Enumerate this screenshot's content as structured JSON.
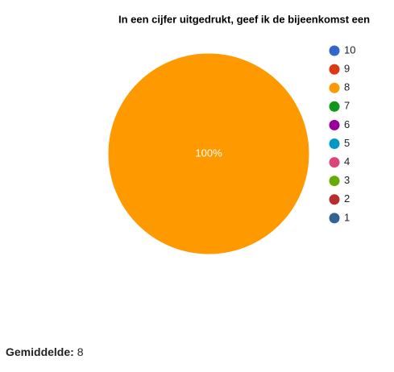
{
  "chart_data": {
    "type": "pie",
    "title": "In een cijfer uitgedrukt, geef ik de bijeenkomst een",
    "categories": [
      "10",
      "9",
      "8",
      "7",
      "6",
      "5",
      "4",
      "3",
      "2",
      "1"
    ],
    "values": [
      0,
      0,
      100,
      0,
      0,
      0,
      0,
      0,
      0,
      0
    ],
    "value_labels": [
      null,
      null,
      "100%",
      null,
      null,
      null,
      null,
      null,
      null,
      null
    ],
    "colors": [
      "#3366cc",
      "#dc3912",
      "#ff9900",
      "#109618",
      "#990099",
      "#0099c6",
      "#dd4477",
      "#66aa00",
      "#b82e2e",
      "#316395"
    ],
    "legend": "right"
  },
  "average": {
    "label": "Gemiddelde:",
    "value": 8
  }
}
